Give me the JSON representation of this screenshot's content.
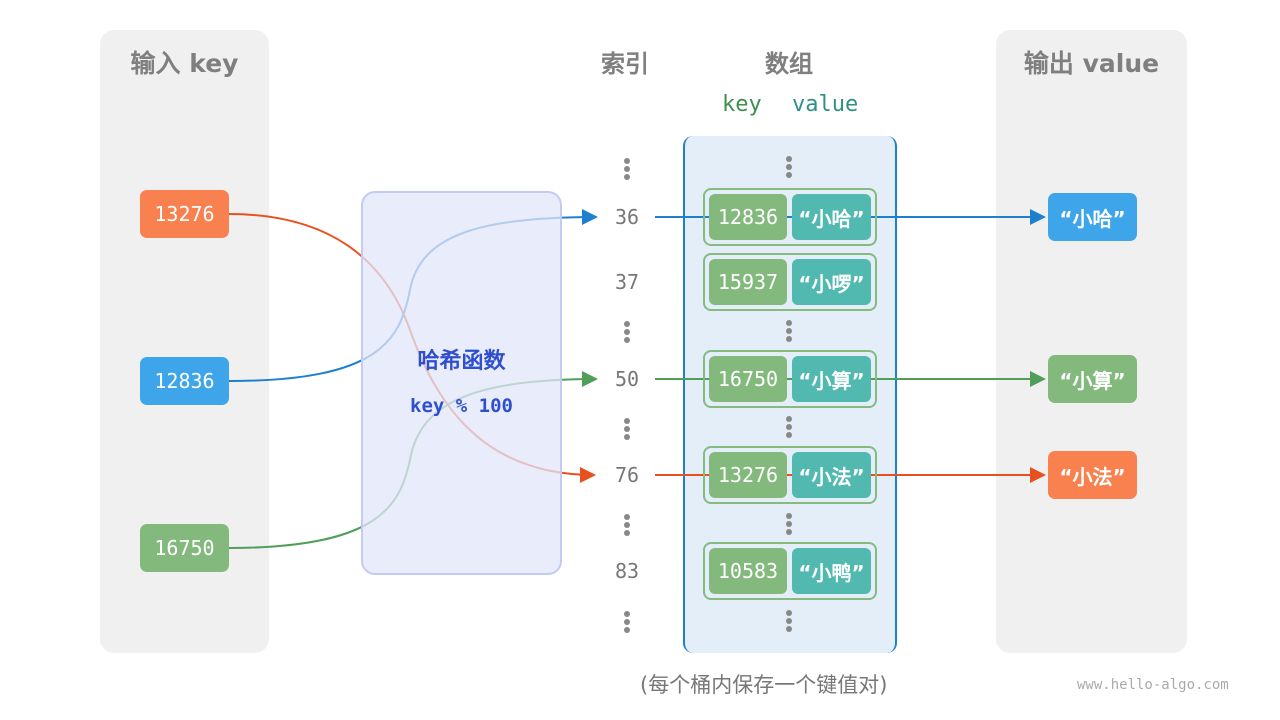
{
  "input_panel": {
    "title": "输入 key",
    "keys": [
      "13276",
      "12836",
      "16750"
    ]
  },
  "hash": {
    "title": "哈希函数",
    "formula": "key % 100"
  },
  "index_header": "索引",
  "array_header": "数组",
  "array_subheader": {
    "key": "key",
    "value": "value"
  },
  "indices": [
    "36",
    "37",
    "50",
    "76",
    "83"
  ],
  "entries": [
    {
      "key": "12836",
      "value": "“小哈”"
    },
    {
      "key": "15937",
      "value": "“小啰”"
    },
    {
      "key": "16750",
      "value": "“小算”"
    },
    {
      "key": "13276",
      "value": "“小法”"
    },
    {
      "key": "10583",
      "value": "“小鸭”"
    }
  ],
  "output_panel": {
    "title": "输出 value",
    "values": [
      "“小哈”",
      "“小算”",
      "“小法”"
    ]
  },
  "caption": "(每个桶内保存一个键值对)",
  "watermark": "www.hello-algo.com",
  "colors": {
    "orange": "#f9804f",
    "blue": "#3ea5ea",
    "green": "#84b97e",
    "teal": "#52b9b1",
    "bucket_border": "#1f7fcf",
    "hash_text": "#2f4fcf"
  }
}
